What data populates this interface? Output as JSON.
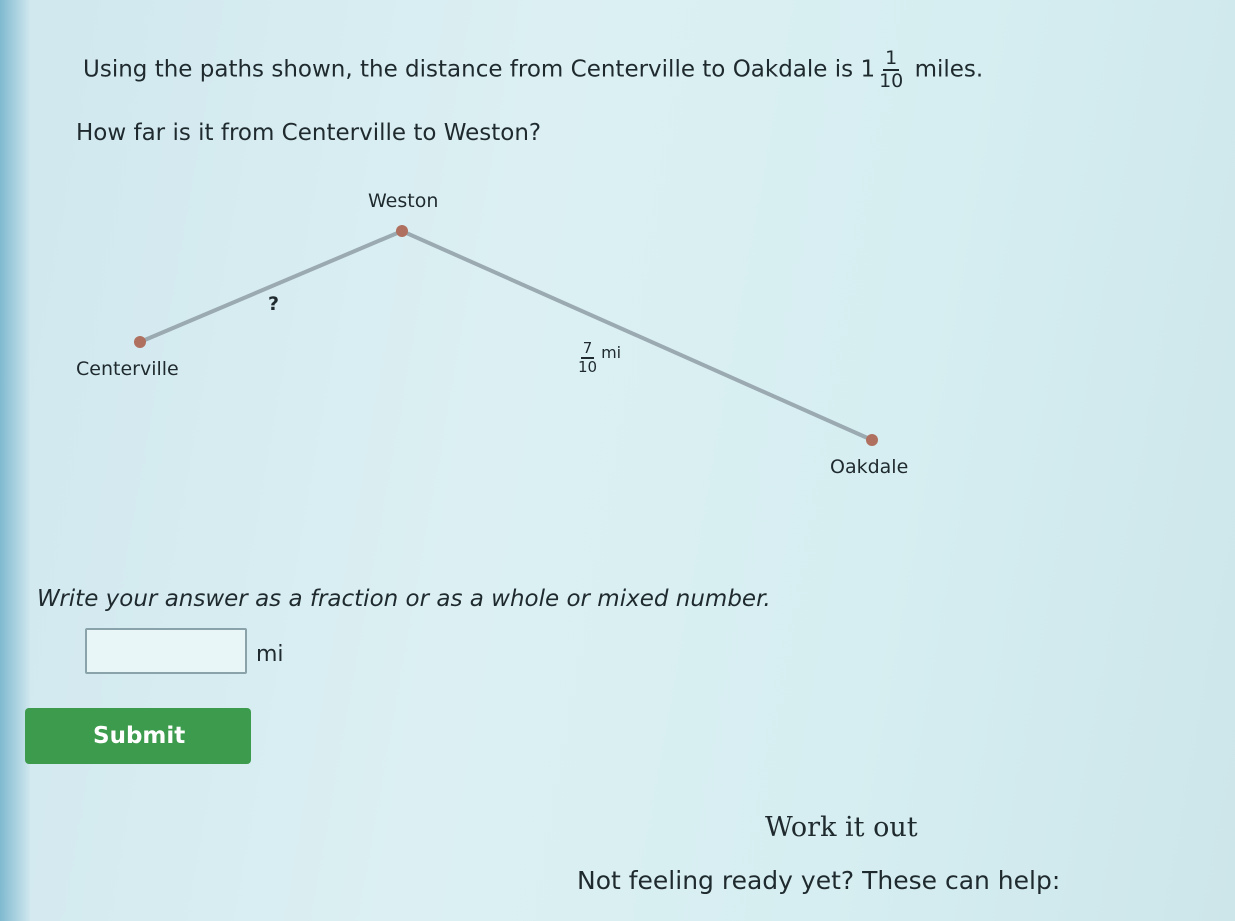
{
  "question": {
    "prefix": "Using the paths shown, the distance from Centerville to Oakdale is",
    "whole": "1",
    "numerator": "1",
    "denominator": "10",
    "suffix": "miles."
  },
  "prompt": "How far is it from Centerville to Weston?",
  "diagram": {
    "nodes": [
      {
        "label": "Weston"
      },
      {
        "label": "Centerville"
      },
      {
        "label": "Oakdale"
      }
    ],
    "edges": [
      {
        "label": "?"
      },
      {
        "numerator": "7",
        "denominator": "10",
        "unit": "mi"
      }
    ]
  },
  "instructions": "Write your answer as a fraction or as a whole or mixed number.",
  "answer": {
    "unit": "mi"
  },
  "submit": "Submit",
  "help": {
    "title": "Work it out",
    "text": "Not feeling ready yet? These can help:"
  }
}
